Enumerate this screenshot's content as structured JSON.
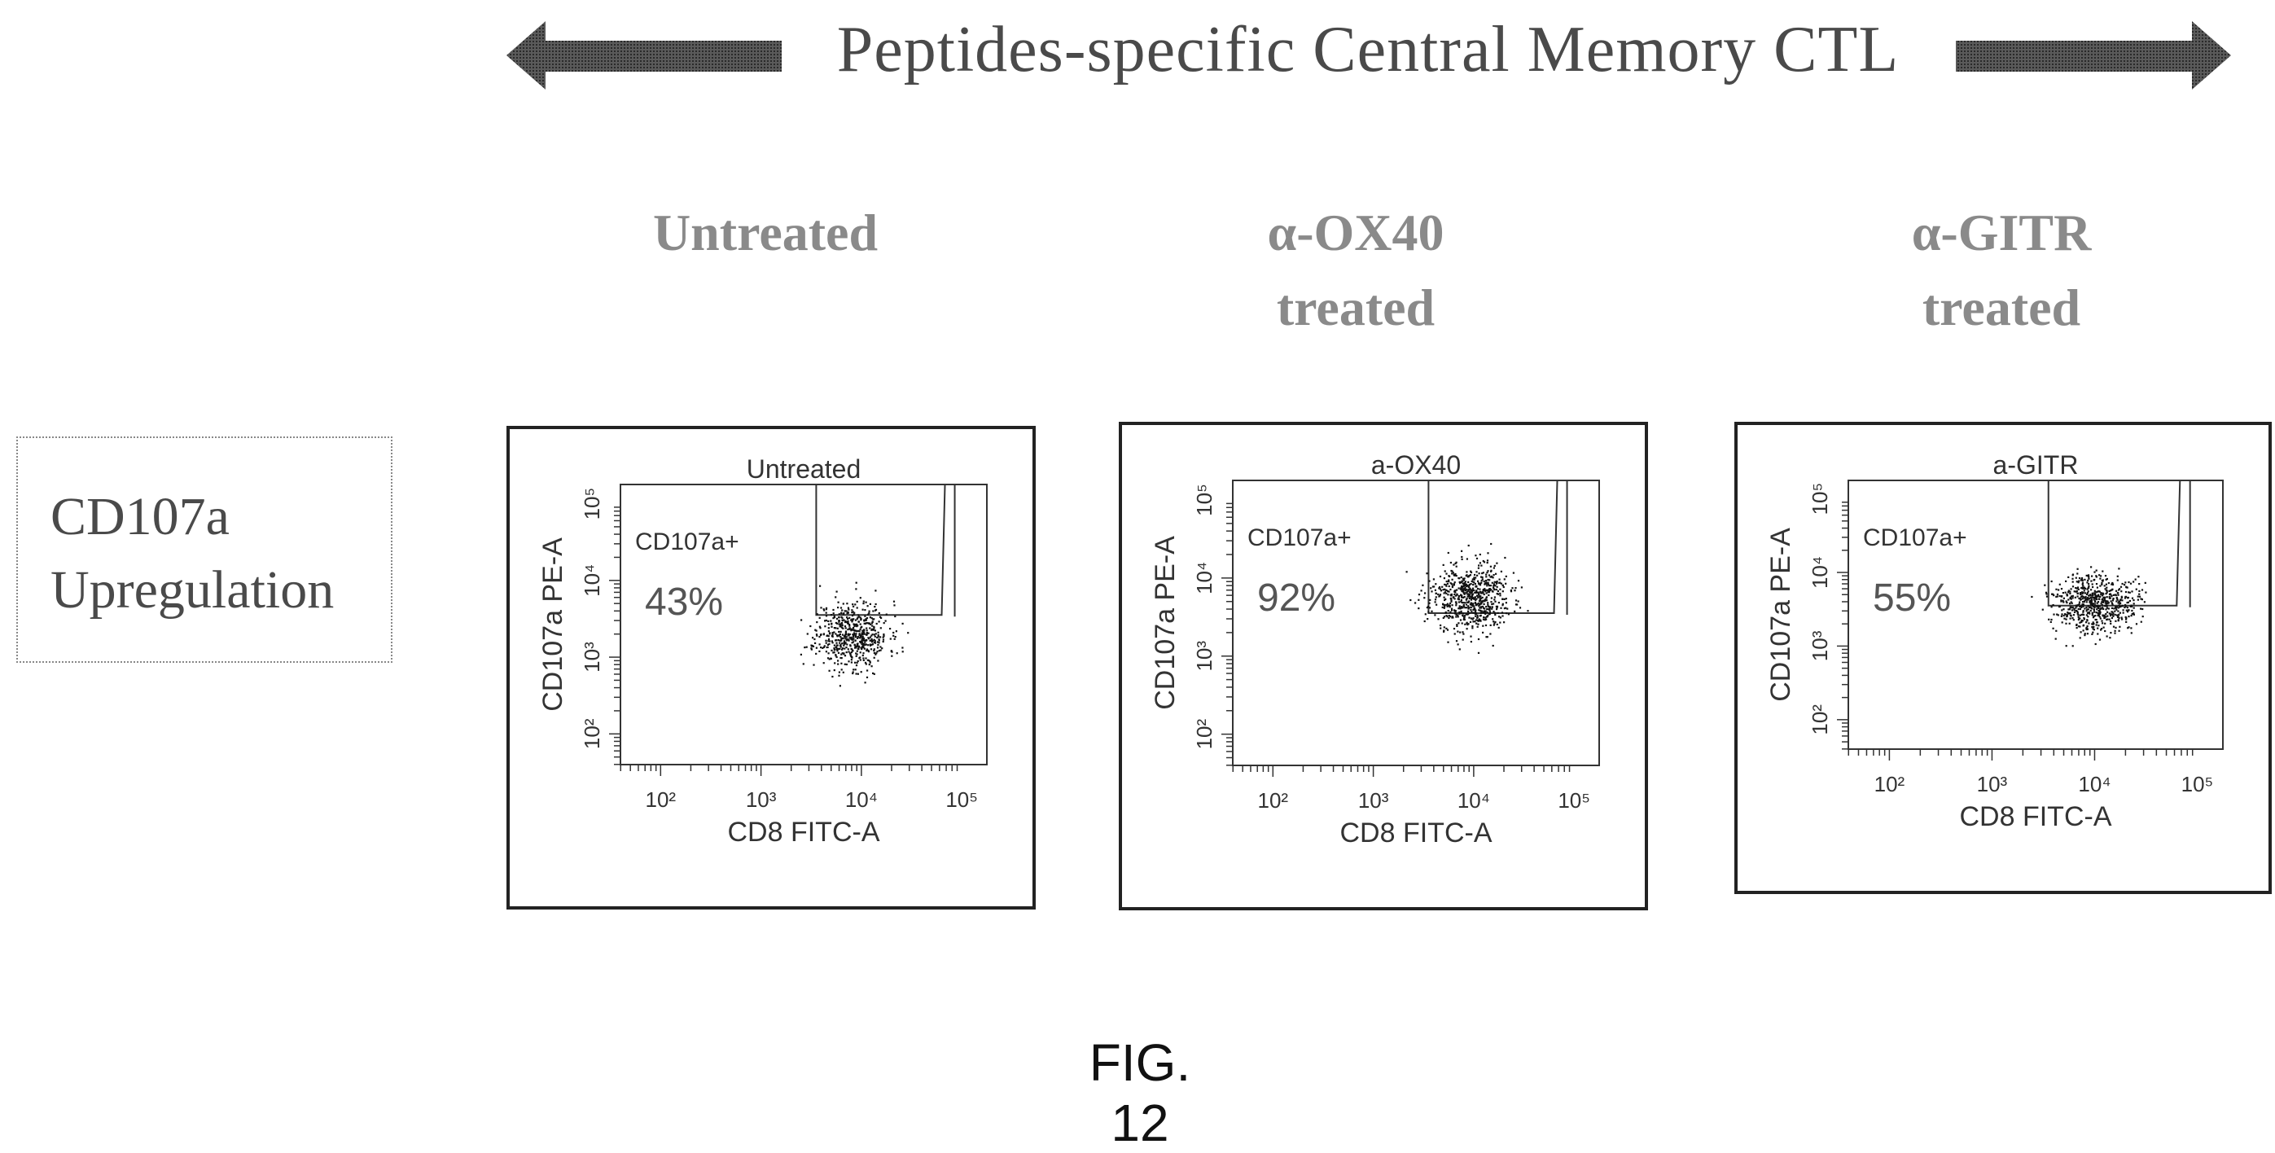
{
  "header": {
    "title": "Peptides-specific Central Memory CTL"
  },
  "row_label": {
    "line1": "CD107a",
    "line2": "Upregulation"
  },
  "figure_label": "FIG. 12",
  "columns": [
    {
      "line1": "Untreated",
      "line2": ""
    },
    {
      "line1": "α-OX40",
      "line2": "treated"
    },
    {
      "line1": "α-GITR",
      "line2": "treated"
    }
  ],
  "chart_data": [
    {
      "type": "scatter",
      "title": "Untreated",
      "xlabel": "CD8 FITC-A",
      "ylabel": "CD107a PE-A",
      "x_scale": "log",
      "y_scale": "log",
      "x_ticks": [
        "10²",
        "10³",
        "10⁴",
        "10⁵"
      ],
      "y_ticks": [
        "10²",
        "10³",
        "10⁴",
        "10⁵"
      ],
      "gate_label": "CD107a+",
      "gate_percent": "43%",
      "population_center_log10": [
        3.9,
        3.3
      ],
      "spread_log10": [
        0.18,
        0.22
      ],
      "n_points": 600,
      "seed": 11
    },
    {
      "type": "scatter",
      "title": "a-OX40",
      "xlabel": "CD8 FITC-A",
      "ylabel": "CD107a PE-A",
      "x_scale": "log",
      "y_scale": "log",
      "x_ticks": [
        "10²",
        "10³",
        "10⁴",
        "10⁵"
      ],
      "y_ticks": [
        "10²",
        "10³",
        "10⁴",
        "10⁵"
      ],
      "gate_label": "CD107a+",
      "gate_percent": "92%",
      "population_center_log10": [
        3.95,
        3.75
      ],
      "spread_log10": [
        0.2,
        0.22
      ],
      "n_points": 700,
      "seed": 23
    },
    {
      "type": "scatter",
      "title": "a-GITR",
      "xlabel": "CD8 FITC-A",
      "ylabel": "CD107a PE-A",
      "x_scale": "log",
      "y_scale": "log",
      "x_ticks": [
        "10²",
        "10³",
        "10⁴",
        "10⁵"
      ],
      "y_ticks": [
        "10²",
        "10³",
        "10⁴",
        "10⁵"
      ],
      "gate_label": "CD107a+",
      "gate_percent": "55%",
      "population_center_log10": [
        4.0,
        3.6
      ],
      "spread_log10": [
        0.2,
        0.2
      ],
      "n_points": 650,
      "seed": 37
    }
  ]
}
